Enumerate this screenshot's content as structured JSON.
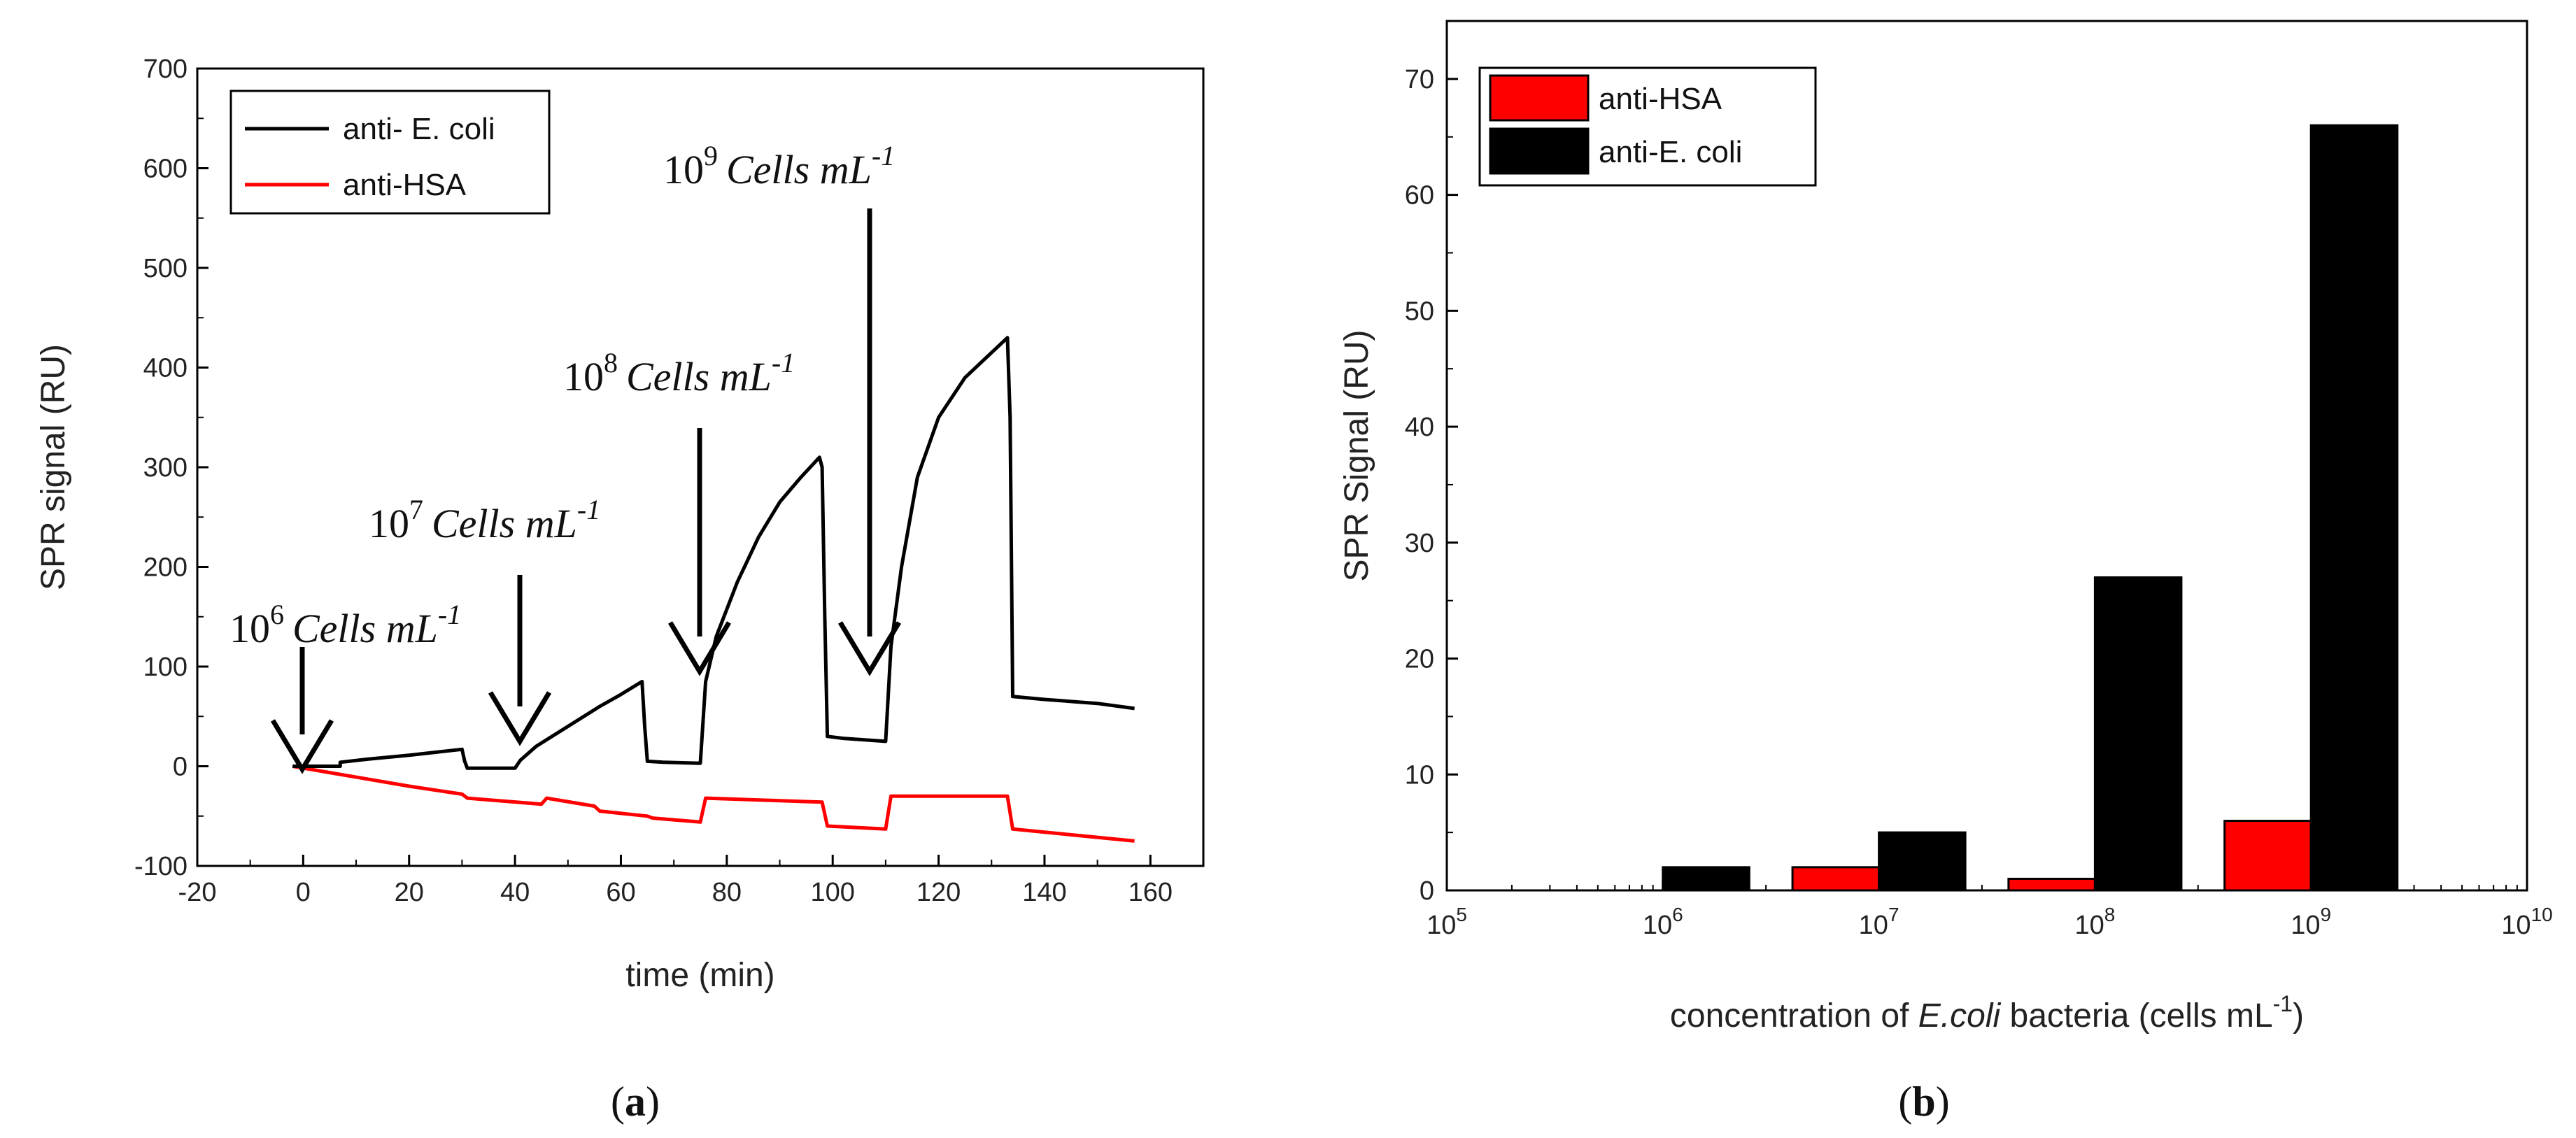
{
  "chart_data": [
    {
      "panel": "a",
      "type": "line",
      "panel_label_prefix": "(",
      "panel_label_letter": "a",
      "panel_label_suffix": ")",
      "xlabel": "time (min)",
      "ylabel": "SPR signal (RU)",
      "xlim": [
        -20,
        170
      ],
      "ylim": [
        -100,
        700
      ],
      "xticks": [
        -20,
        0,
        20,
        40,
        60,
        80,
        100,
        120,
        140,
        160
      ],
      "yticks": [
        -100,
        0,
        100,
        200,
        300,
        400,
        500,
        600,
        700
      ],
      "legend": "top-left",
      "series": [
        {
          "name": "anti- E. coli",
          "color": "#000000",
          "x": [
            -2,
            7,
            7,
            12,
            20,
            25,
            30,
            30.5,
            31,
            34,
            40,
            41,
            44,
            50,
            56,
            60,
            64,
            64.5,
            65,
            68,
            75,
            76,
            78,
            82,
            86,
            90,
            94,
            97.5,
            98,
            98.5,
            99,
            102,
            110,
            111,
            113,
            116,
            120,
            125,
            130,
            133,
            133.5,
            134,
            140,
            150,
            157
          ],
          "y": [
            0,
            0,
            4,
            7,
            11,
            14,
            17,
            5,
            -2,
            -2,
            -2,
            6,
            20,
            40,
            60,
            72,
            85,
            40,
            5,
            4,
            3,
            85,
            130,
            185,
            230,
            265,
            290,
            310,
            300,
            150,
            30,
            28,
            25,
            120,
            200,
            290,
            350,
            390,
            415,
            430,
            350,
            70,
            67,
            63,
            58
          ]
        },
        {
          "name": "anti-HSA",
          "color": "#ff0000",
          "x": [
            -2,
            20,
            30,
            31,
            45,
            46,
            55,
            56,
            65,
            66,
            75,
            76,
            98,
            99,
            110,
            111,
            133,
            134,
            157
          ],
          "y": [
            0,
            -20,
            -28,
            -32,
            -38,
            -32,
            -40,
            -45,
            -50,
            -52,
            -56,
            -32,
            -36,
            -60,
            -63,
            -30,
            -30,
            -63,
            -75
          ]
        }
      ],
      "annotations": [
        {
          "base": "10",
          "exp": "6",
          "text": "Cells mL",
          "unit_exp": "-1",
          "x": -2,
          "y": 0
        },
        {
          "base": "10",
          "exp": "7",
          "text": "Cells mL",
          "unit_exp": "-1",
          "x": 41,
          "y": 0
        },
        {
          "base": "10",
          "exp": "8",
          "text": "Cells mL",
          "unit_exp": "-1",
          "x": 75,
          "y": 0
        },
        {
          "base": "10",
          "exp": "9",
          "text": "Cells mL",
          "unit_exp": "-1",
          "x": 108,
          "y": 0
        }
      ]
    },
    {
      "panel": "b",
      "type": "bar",
      "panel_label_prefix": "(",
      "panel_label_letter": "b",
      "panel_label_suffix": ")",
      "xlabel_prefix": "concentration of ",
      "xlabel_italic": "E.coli",
      "xlabel_suffix": " bacteria (cells mL",
      "xlabel_exp": "-1",
      "xlabel_close": ")",
      "ylabel": "SPR Signal (RU)",
      "xscale": "log",
      "xlim_exp": [
        5,
        10
      ],
      "ylim": [
        0,
        75
      ],
      "yticks": [
        0,
        10,
        20,
        30,
        40,
        50,
        60,
        70
      ],
      "xtick_base": "10",
      "xticks_exp": [
        "5",
        "6",
        "7",
        "8",
        "9",
        "10"
      ],
      "legend": "top-left",
      "categories_exp": [
        6,
        7,
        8,
        9
      ],
      "series": [
        {
          "name": "anti-HSA",
          "color": "#ff0000",
          "values": [
            0,
            2,
            1,
            6
          ]
        },
        {
          "name": "anti-E. coli",
          "color": "#000000",
          "values": [
            2,
            5,
            27,
            66
          ]
        }
      ]
    }
  ]
}
